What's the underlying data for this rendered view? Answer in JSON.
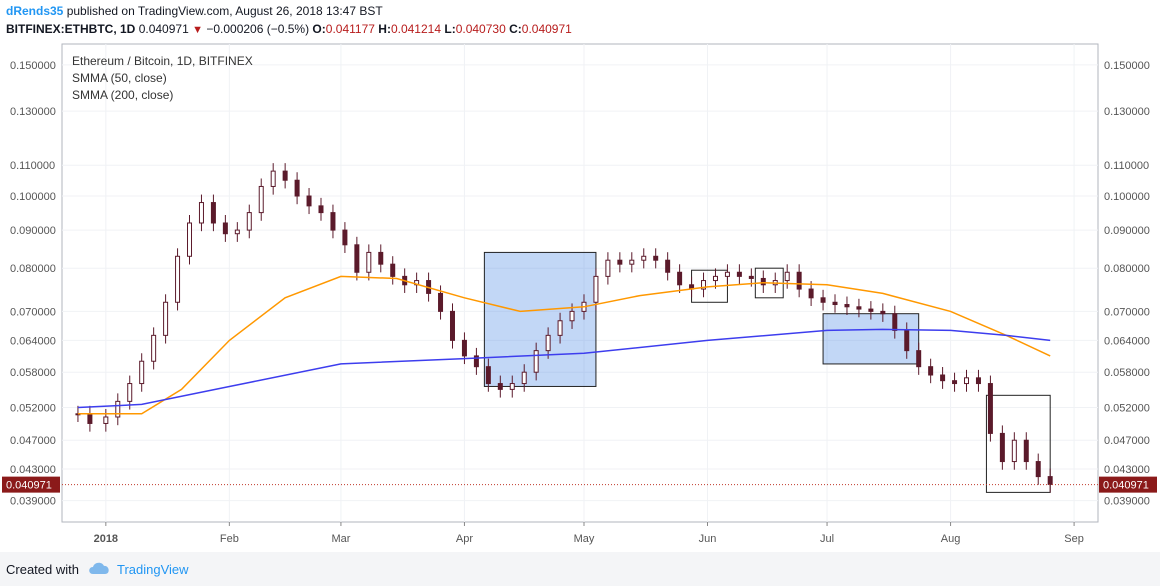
{
  "header": {
    "author": "dRends35",
    "published_text": "published on TradingView.com, August 26, 2018 13:47 BST",
    "symbol": "BITFINEX:ETHBTC, 1D",
    "last": "0.040971",
    "change": "−0.000206 (−0.5%)",
    "o_label": "O:",
    "o_value": "0.041177",
    "h_label": "H:",
    "h_value": "0.041214",
    "l_label": "L:",
    "l_value": "0.040730",
    "c_label": "C:",
    "c_value": "0.040971"
  },
  "legend": {
    "title": "Ethereum / Bitcoin, 1D, BITFINEX",
    "smma50": "SMMA (50, close)",
    "smma200": "SMMA (200, close)"
  },
  "footer": {
    "created_with": "Created with",
    "brand": "TradingView"
  },
  "colors": {
    "candle": "#5b1a2b",
    "candle_up": "#ffffff",
    "smma50": "#ff9800",
    "smma200": "#3d3dee",
    "last_price_bg": "#8b1a1a",
    "box_fill": "rgba(80,140,230,0.35)"
  },
  "chart_data": {
    "type": "candlestick",
    "title": "Ethereum / Bitcoin, 1D, BITFINEX",
    "y_scale": "log",
    "ylim": [
      0.0365,
      0.16
    ],
    "y_ticks": [
      "0.150000",
      "0.130000",
      "0.110000",
      "0.100000",
      "0.090000",
      "0.080000",
      "0.070000",
      "0.064000",
      "0.058000",
      "0.052000",
      "0.047000",
      "0.043000",
      "0.039000"
    ],
    "x_ticks": [
      "2018",
      "Feb",
      "Mar",
      "Apr",
      "May",
      "Jun",
      "Jul",
      "Aug",
      "Sep"
    ],
    "x_tick_dates": [
      "2018-01-01",
      "2018-02-01",
      "2018-03-01",
      "2018-04-01",
      "2018-05-01",
      "2018-06-01",
      "2018-07-01",
      "2018-08-01",
      "2018-09-01"
    ],
    "last_price": "0.040971",
    "close_series": {
      "dates": [
        "2017-12-25",
        "2017-12-28",
        "2018-01-01",
        "2018-01-04",
        "2018-01-07",
        "2018-01-10",
        "2018-01-13",
        "2018-01-16",
        "2018-01-19",
        "2018-01-22",
        "2018-01-25",
        "2018-01-28",
        "2018-01-31",
        "2018-02-03",
        "2018-02-06",
        "2018-02-09",
        "2018-02-12",
        "2018-02-15",
        "2018-02-18",
        "2018-02-21",
        "2018-02-24",
        "2018-02-27",
        "2018-03-02",
        "2018-03-05",
        "2018-03-08",
        "2018-03-11",
        "2018-03-14",
        "2018-03-17",
        "2018-03-20",
        "2018-03-23",
        "2018-03-26",
        "2018-03-29",
        "2018-04-01",
        "2018-04-04",
        "2018-04-07",
        "2018-04-10",
        "2018-04-13",
        "2018-04-16",
        "2018-04-19",
        "2018-04-22",
        "2018-04-25",
        "2018-04-28",
        "2018-05-01",
        "2018-05-04",
        "2018-05-07",
        "2018-05-10",
        "2018-05-13",
        "2018-05-16",
        "2018-05-19",
        "2018-05-22",
        "2018-05-25",
        "2018-05-28",
        "2018-05-31",
        "2018-06-03",
        "2018-06-06",
        "2018-06-09",
        "2018-06-12",
        "2018-06-15",
        "2018-06-18",
        "2018-06-21",
        "2018-06-24",
        "2018-06-27",
        "2018-06-30",
        "2018-07-03",
        "2018-07-06",
        "2018-07-09",
        "2018-07-12",
        "2018-07-15",
        "2018-07-18",
        "2018-07-21",
        "2018-07-24",
        "2018-07-27",
        "2018-07-30",
        "2018-08-02",
        "2018-08-05",
        "2018-08-08",
        "2018-08-11",
        "2018-08-14",
        "2018-08-17",
        "2018-08-20",
        "2018-08-23",
        "2018-08-26"
      ],
      "close": [
        0.051,
        0.0495,
        0.0505,
        0.053,
        0.056,
        0.06,
        0.065,
        0.072,
        0.083,
        0.092,
        0.098,
        0.092,
        0.089,
        0.09,
        0.095,
        0.103,
        0.108,
        0.105,
        0.1,
        0.097,
        0.095,
        0.09,
        0.086,
        0.079,
        0.084,
        0.081,
        0.078,
        0.076,
        0.077,
        0.074,
        0.07,
        0.064,
        0.061,
        0.059,
        0.056,
        0.055,
        0.056,
        0.058,
        0.062,
        0.065,
        0.068,
        0.07,
        0.072,
        0.078,
        0.082,
        0.081,
        0.082,
        0.083,
        0.082,
        0.079,
        0.076,
        0.075,
        0.077,
        0.078,
        0.079,
        0.078,
        0.0775,
        0.076,
        0.077,
        0.079,
        0.075,
        0.073,
        0.072,
        0.0715,
        0.071,
        0.0705,
        0.07,
        0.0695,
        0.066,
        0.062,
        0.059,
        0.0575,
        0.0565,
        0.056,
        0.057,
        0.056,
        0.048,
        0.044,
        0.047,
        0.044,
        0.042,
        0.041
      ]
    },
    "series": [
      {
        "name": "SMMA (50, close)",
        "dates": [
          "2017-12-25",
          "2018-01-10",
          "2018-01-20",
          "2018-02-01",
          "2018-02-15",
          "2018-03-01",
          "2018-03-15",
          "2018-04-01",
          "2018-04-15",
          "2018-05-01",
          "2018-05-15",
          "2018-06-01",
          "2018-06-15",
          "2018-07-01",
          "2018-07-15",
          "2018-08-01",
          "2018-08-15",
          "2018-08-26"
        ],
        "values": [
          0.051,
          0.051,
          0.055,
          0.064,
          0.073,
          0.078,
          0.0775,
          0.073,
          0.07,
          0.071,
          0.0735,
          0.0755,
          0.0765,
          0.076,
          0.074,
          0.07,
          0.065,
          0.061
        ]
      },
      {
        "name": "SMMA (200, close)",
        "dates": [
          "2017-12-25",
          "2018-01-10",
          "2018-02-01",
          "2018-03-01",
          "2018-04-01",
          "2018-05-01",
          "2018-06-01",
          "2018-07-01",
          "2018-07-15",
          "2018-08-01",
          "2018-08-15",
          "2018-08-26"
        ],
        "values": [
          0.052,
          0.0525,
          0.0555,
          0.0595,
          0.0605,
          0.0615,
          0.064,
          0.066,
          0.0662,
          0.066,
          0.065,
          0.064
        ]
      }
    ],
    "annotations": [
      {
        "type": "rectangle",
        "filled": true,
        "from": "2018-04-06",
        "to": "2018-05-04",
        "y_top": 0.084,
        "y_bottom": 0.0555
      },
      {
        "type": "rectangle",
        "filled": false,
        "from": "2018-05-28",
        "to": "2018-06-06",
        "y_top": 0.0795,
        "y_bottom": 0.072
      },
      {
        "type": "rectangle",
        "filled": false,
        "from": "2018-06-13",
        "to": "2018-06-20",
        "y_top": 0.08,
        "y_bottom": 0.073
      },
      {
        "type": "rectangle",
        "filled": true,
        "from": "2018-06-30",
        "to": "2018-07-24",
        "y_top": 0.0695,
        "y_bottom": 0.0595
      },
      {
        "type": "rectangle",
        "filled": false,
        "from": "2018-08-10",
        "to": "2018-08-26",
        "y_top": 0.054,
        "y_bottom": 0.04
      }
    ]
  }
}
